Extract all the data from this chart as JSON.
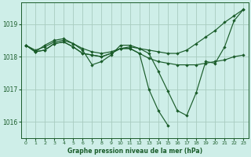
{
  "xlabel": "Graphe pression niveau de la mer (hPa)",
  "bg_color": "#ceeee8",
  "line_color": "#1a5c2a",
  "grid_color": "#a8ccc0",
  "ylim": [
    1015.5,
    1019.65
  ],
  "xlim": [
    -0.5,
    23.5
  ],
  "yticks": [
    1016,
    1017,
    1018,
    1019
  ],
  "xticks": [
    0,
    1,
    2,
    3,
    4,
    5,
    6,
    7,
    8,
    9,
    10,
    11,
    12,
    13,
    14,
    15,
    16,
    17,
    18,
    19,
    20,
    21,
    22,
    23
  ],
  "line1_x": [
    0,
    1,
    2,
    3,
    4,
    5,
    6,
    7,
    8,
    9,
    10,
    11,
    12,
    13,
    14,
    15,
    16,
    17,
    18,
    19,
    20,
    21,
    22,
    23
  ],
  "line1_y": [
    1018.35,
    1018.15,
    1018.35,
    1018.5,
    1018.55,
    1018.4,
    1018.2,
    1017.75,
    1017.85,
    1018.05,
    1018.35,
    1018.35,
    1018.25,
    1018.1,
    1017.55,
    1016.95,
    1016.35,
    1016.2,
    1016.9,
    1017.85,
    1017.8,
    1018.3,
    1019.1,
    1019.45
  ],
  "line2_x": [
    0,
    1,
    2,
    3,
    4,
    5,
    6,
    7,
    8,
    9,
    10,
    11,
    12,
    13,
    14,
    15,
    16,
    17,
    18,
    19,
    20,
    21,
    22,
    23
  ],
  "line2_y": [
    1018.35,
    1018.15,
    1018.2,
    1018.4,
    1018.45,
    1018.3,
    1018.1,
    1018.05,
    1018.0,
    1018.1,
    1018.25,
    1018.25,
    1018.1,
    1017.95,
    1017.85,
    1017.8,
    1017.75,
    1017.75,
    1017.75,
    1017.8,
    1017.85,
    1017.9,
    1018.0,
    1018.05
  ],
  "line3_x": [
    0,
    1,
    2,
    3,
    4,
    5,
    6,
    7,
    8,
    9,
    10,
    11,
    12,
    13,
    14,
    15,
    16,
    17,
    18,
    19,
    20,
    21,
    22,
    23
  ],
  "line3_y": [
    1018.35,
    1018.2,
    1018.3,
    1018.45,
    1018.5,
    1018.4,
    1018.25,
    1018.15,
    1018.1,
    1018.15,
    1018.25,
    1018.3,
    1018.25,
    1018.2,
    1018.15,
    1018.1,
    1018.1,
    1018.2,
    1018.4,
    1018.6,
    1018.8,
    1019.05,
    1019.25,
    1019.45
  ],
  "line4_x": [
    0,
    1,
    2,
    3,
    4,
    5,
    6,
    7,
    8,
    9,
    10,
    11,
    12,
    13,
    14,
    15
  ],
  "line4_y": [
    1018.35,
    1018.15,
    1018.2,
    1018.4,
    1018.45,
    1018.3,
    1018.1,
    1018.05,
    1018.0,
    1018.1,
    1018.25,
    1018.25,
    1018.1,
    1017.0,
    1016.35,
    1015.9
  ]
}
